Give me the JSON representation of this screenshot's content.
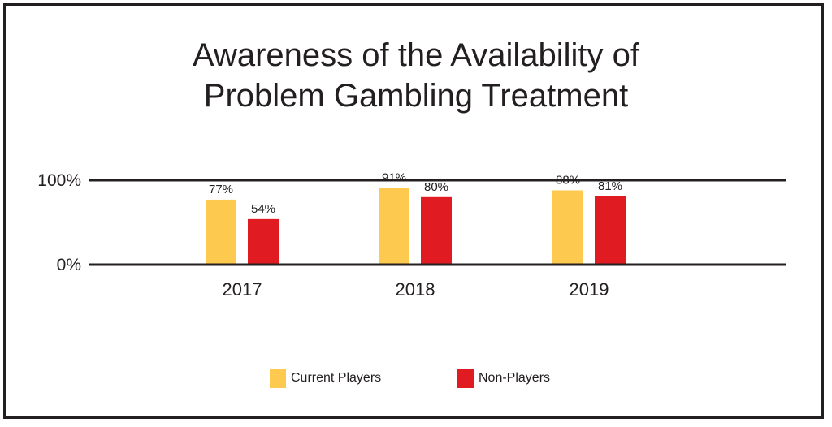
{
  "chart_data": {
    "type": "bar",
    "title_lines": [
      "Awareness of the Availability of",
      "Problem Gambling Treatment"
    ],
    "categories": [
      "2017",
      "2018",
      "2019"
    ],
    "series": [
      {
        "name": "Current Players",
        "values": [
          77,
          91,
          88
        ],
        "labels": [
          "77%",
          "91%",
          "88%"
        ],
        "color": "#fdc94e"
      },
      {
        "name": "Non-Players",
        "values": [
          54,
          80,
          81
        ],
        "labels": [
          "54%",
          "80%",
          "81%"
        ],
        "color": "#e11b22"
      }
    ],
    "y_ticks": [
      {
        "value": 0,
        "label": "0%"
      },
      {
        "value": 100,
        "label": "100%"
      }
    ],
    "ylim": [
      0,
      100
    ],
    "legend_position": "bottom-center",
    "grid": false
  }
}
